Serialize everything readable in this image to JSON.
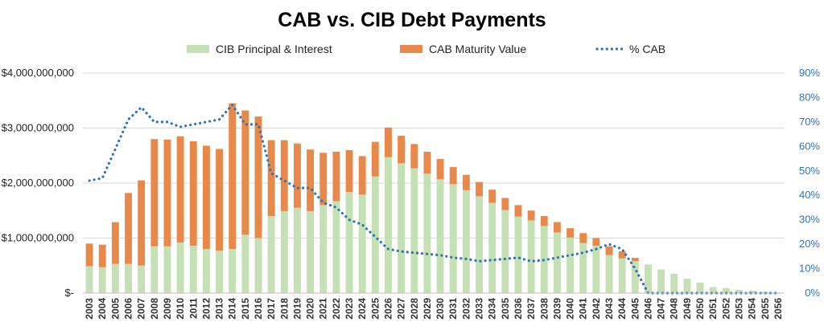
{
  "chart_data": {
    "type": "bar",
    "title": "CAB vs. CIB Debt Payments",
    "stacked": true,
    "legend_position": "top",
    "categories": [
      "2003",
      "2004",
      "2005",
      "2006",
      "2007",
      "2008",
      "2009",
      "2010",
      "2011",
      "2012",
      "2013",
      "2014",
      "2015",
      "2016",
      "2017",
      "2018",
      "2019",
      "2020",
      "2021",
      "2022",
      "2023",
      "2024",
      "2025",
      "2026",
      "2027",
      "2028",
      "2029",
      "2030",
      "2031",
      "2032",
      "2033",
      "2034",
      "2035",
      "2036",
      "2037",
      "2038",
      "2039",
      "2040",
      "2041",
      "2042",
      "2043",
      "2044",
      "2045",
      "2046",
      "2047",
      "2048",
      "2049",
      "2050",
      "2051",
      "2052",
      "2053",
      "2054",
      "2055",
      "2056"
    ],
    "series": [
      {
        "name": "CIB Principal & Interest",
        "kind": "bar",
        "axis": "left",
        "color": "#c5e0b4",
        "values": [
          490000000,
          470000000,
          530000000,
          530000000,
          500000000,
          850000000,
          850000000,
          920000000,
          860000000,
          800000000,
          770000000,
          800000000,
          1060000000,
          1000000000,
          1400000000,
          1490000000,
          1550000000,
          1490000000,
          1600000000,
          1670000000,
          1840000000,
          1790000000,
          2120000000,
          2470000000,
          2360000000,
          2270000000,
          2170000000,
          2070000000,
          1980000000,
          1870000000,
          1760000000,
          1640000000,
          1510000000,
          1390000000,
          1320000000,
          1220000000,
          1100000000,
          1010000000,
          910000000,
          860000000,
          690000000,
          630000000,
          580000000,
          520000000,
          430000000,
          350000000,
          260000000,
          190000000,
          110000000,
          90000000,
          60000000,
          40000000,
          20000000,
          10000000
        ]
      },
      {
        "name": "CAB Maturity Value",
        "kind": "bar",
        "axis": "left",
        "color": "#e8894a",
        "values": [
          410000000,
          410000000,
          760000000,
          1290000000,
          1550000000,
          1950000000,
          1940000000,
          1930000000,
          1900000000,
          1880000000,
          1850000000,
          2650000000,
          2260000000,
          2210000000,
          1380000000,
          1290000000,
          1170000000,
          1120000000,
          950000000,
          900000000,
          760000000,
          700000000,
          630000000,
          540000000,
          500000000,
          440000000,
          400000000,
          370000000,
          310000000,
          280000000,
          260000000,
          240000000,
          220000000,
          210000000,
          180000000,
          180000000,
          190000000,
          170000000,
          180000000,
          140000000,
          160000000,
          130000000,
          60000000,
          0,
          0,
          0,
          0,
          0,
          0,
          0,
          0,
          0,
          0,
          0
        ]
      },
      {
        "name": "% CAB",
        "kind": "line",
        "axis": "right",
        "color": "#2e75b6",
        "style": "dotted",
        "values": [
          0.46,
          0.47,
          0.59,
          0.71,
          0.76,
          0.7,
          0.7,
          0.68,
          0.69,
          0.7,
          0.71,
          0.77,
          0.69,
          0.69,
          0.49,
          0.46,
          0.43,
          0.43,
          0.37,
          0.35,
          0.3,
          0.28,
          0.23,
          0.18,
          0.17,
          0.165,
          0.16,
          0.155,
          0.145,
          0.14,
          0.13,
          0.135,
          0.14,
          0.145,
          0.13,
          0.135,
          0.145,
          0.155,
          0.165,
          0.18,
          0.2,
          0.18,
          0.1,
          0.0,
          0.0,
          0.0,
          0.0,
          0.0,
          0.0,
          0.0,
          0.0,
          0.0,
          0.0,
          0.0
        ]
      }
    ],
    "y_left": {
      "ylim": [
        0,
        4000000000
      ],
      "ticks": [
        "$-",
        "$1,000,000,000",
        "$2,000,000,000",
        "$3,000,000,000",
        "$4,000,000,000"
      ]
    },
    "y_right": {
      "ylim": [
        0,
        0.9
      ],
      "ticks": [
        "0%",
        "10%",
        "20%",
        "30%",
        "40%",
        "50%",
        "60%",
        "70%",
        "80%",
        "90%"
      ]
    },
    "grid": true
  }
}
